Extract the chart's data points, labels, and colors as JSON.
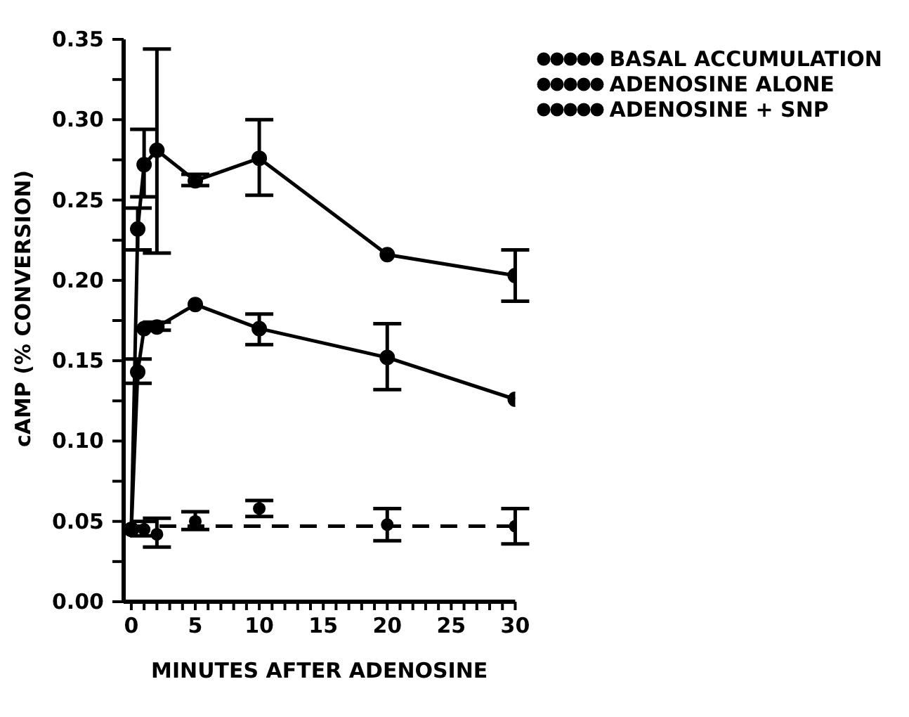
{
  "chart_data": {
    "type": "line",
    "xlabel": "MINUTES AFTER ADENOSINE",
    "ylabel": "cAMP (% CONVERSION)",
    "xlim": [
      -0.6,
      30
    ],
    "xticks": [
      0,
      {
        "value": 1,
        "label": null
      },
      {
        "value": 2,
        "label": null
      },
      {
        "value": 3,
        "label": null
      },
      {
        "value": 4,
        "label": null
      },
      5,
      {
        "value": 6,
        "label": null
      },
      {
        "value": 7,
        "label": null
      },
      {
        "value": 8,
        "label": null
      },
      {
        "value": 9,
        "label": null
      },
      10,
      {
        "value": 11,
        "label": null
      },
      {
        "value": 12,
        "label": null
      },
      {
        "value": 13,
        "label": null
      },
      {
        "value": 14,
        "label": null
      },
      15,
      {
        "value": 16,
        "label": null
      },
      {
        "value": 17,
        "label": null
      },
      {
        "value": 18,
        "label": null
      },
      {
        "value": 19,
        "label": null
      },
      20,
      {
        "value": 21,
        "label": null
      },
      {
        "value": 22,
        "label": null
      },
      {
        "value": 23,
        "label": null
      },
      {
        "value": 24,
        "label": null
      },
      25,
      {
        "value": 26,
        "label": null
      },
      {
        "value": 27,
        "label": null
      },
      {
        "value": 28,
        "label": null
      },
      {
        "value": 29,
        "label": null
      },
      30
    ],
    "ylim": [
      0,
      0.35
    ],
    "yticks": [
      {
        "value": 0,
        "label": "0.00"
      },
      {
        "value": 0.025,
        "label": null
      },
      {
        "value": 0.05,
        "label": "0.05"
      },
      {
        "value": 0.075,
        "label": null
      },
      {
        "value": 0.1,
        "label": "0.10"
      },
      {
        "value": 0.125,
        "label": null
      },
      {
        "value": 0.15,
        "label": "0.15"
      },
      {
        "value": 0.175,
        "label": null
      },
      {
        "value": 0.2,
        "label": "0.20"
      },
      {
        "value": 0.225,
        "label": null
      },
      {
        "value": 0.25,
        "label": "0.25"
      },
      {
        "value": 0.275,
        "label": null
      },
      {
        "value": 0.3,
        "label": "0.30"
      },
      {
        "value": 0.325,
        "label": null
      },
      {
        "value": 0.35,
        "label": "0.35"
      }
    ],
    "grid": false,
    "legend": "top right",
    "marker": "circle",
    "series": [
      {
        "name": "BASAL ACCUMULATION",
        "type": "scatter",
        "color": "#000000",
        "x": [
          1,
          2,
          5,
          10,
          20,
          30
        ],
        "values": [
          0.045,
          0.042,
          0.05,
          0.058,
          0.048,
          0.047
        ],
        "errors": [
          [
            0.041,
            0.05
          ],
          [
            0.034,
            0.052
          ],
          [
            0.045,
            0.056
          ],
          [
            0.053,
            0.063
          ],
          [
            0.038,
            0.058
          ],
          [
            0.036,
            0.058
          ]
        ]
      },
      {
        "name": "ADENOSINE ALONE",
        "color": "#000000",
        "x": [
          0,
          0.5,
          1,
          2,
          5,
          10,
          20,
          30
        ],
        "values": [
          0.045,
          0.232,
          0.272,
          0.281,
          0.262,
          0.276,
          0.216,
          0.203
        ],
        "errors": [
          null,
          [
            0.219,
            0.245
          ],
          [
            0.252,
            0.294
          ],
          [
            0.217,
            0.344
          ],
          [
            0.259,
            0.266
          ],
          [
            0.253,
            0.3
          ],
          null,
          [
            0.187,
            0.219
          ]
        ]
      },
      {
        "name": "ADENOSINE + SNP",
        "color": "#000000",
        "x": [
          0,
          0.5,
          1,
          2,
          5,
          10,
          20,
          30
        ],
        "values": [
          0.045,
          0.143,
          0.17,
          0.171,
          0.185,
          0.17,
          0.152,
          0.126
        ],
        "errors": [
          null,
          [
            0.136,
            0.151
          ],
          null,
          [
            0.169,
            0.174
          ],
          null,
          [
            0.16,
            0.179
          ],
          [
            0.132,
            0.173
          ],
          null
        ]
      },
      {
        "color": "#000000",
        "line_style": "dashed",
        "marker": "none",
        "x": [
          0,
          30
        ],
        "values": [
          0.047,
          0.047
        ]
      }
    ]
  }
}
